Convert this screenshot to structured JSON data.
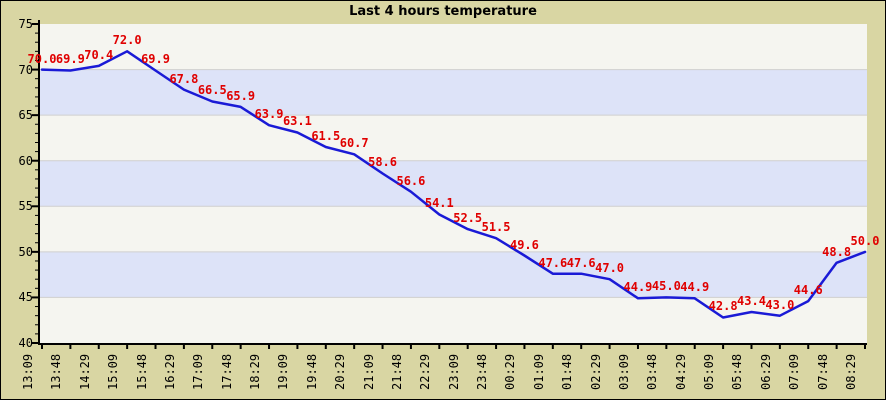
{
  "chart_data": {
    "type": "line",
    "title": "Last 4 hours temperature",
    "xlabel": "",
    "ylabel": "",
    "ylim": [
      40,
      75
    ],
    "y_ticks": [
      75,
      70,
      65,
      60,
      55,
      50,
      45,
      40
    ],
    "grid": "horizontal alternating bands every 5 units",
    "legend": "none",
    "x_labels": [
      "13:09",
      "13:48",
      "14:29",
      "15:09",
      "15:48",
      "16:29",
      "17:09",
      "17:48",
      "18:29",
      "19:09",
      "19:48",
      "20:29",
      "21:09",
      "21:48",
      "22:29",
      "23:09",
      "23:48",
      "00:29",
      "01:09",
      "01:48",
      "02:29",
      "03:09",
      "03:48",
      "04:29",
      "05:09",
      "05:48",
      "06:29",
      "07:09",
      "07:48",
      "08:29"
    ],
    "series": [
      {
        "name": "temperature",
        "values": [
          70.0,
          69.9,
          70.4,
          72.0,
          69.9,
          67.8,
          66.5,
          65.9,
          63.9,
          63.1,
          61.5,
          60.7,
          58.6,
          56.6,
          54.1,
          52.5,
          51.5,
          49.6,
          47.6,
          47.6,
          47.0,
          44.9,
          45.0,
          44.9,
          42.8,
          43.4,
          43.0,
          44.6,
          48.8,
          50.0
        ]
      }
    ]
  },
  "colors": {
    "background": "#d9d6a3",
    "band_light": "#f5f5f0",
    "band_blue": "#dde3f8",
    "line": "#1a1ad6",
    "value_label": "#e00000",
    "axis": "#000000",
    "grid": "#cfcfcf",
    "tick_label": "#000000"
  }
}
